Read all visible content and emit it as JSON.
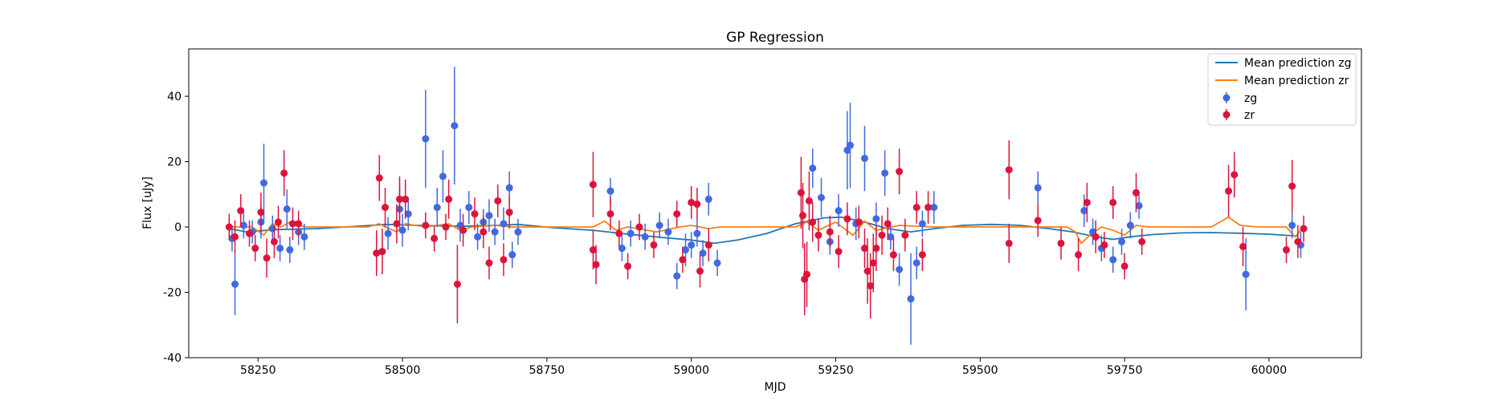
{
  "chart_data": {
    "type": "scatter",
    "title": "GP Regression",
    "xlabel": "MJD",
    "ylabel": "Flux [uJy]",
    "xlim": [
      58130,
      60160
    ],
    "ylim": [
      -40,
      54.5
    ],
    "xticks": [
      58250,
      58500,
      58750,
      59000,
      59250,
      59500,
      59750,
      60000
    ],
    "yticks": [
      -40,
      -20,
      0,
      20,
      40
    ],
    "legend_position": "top-right",
    "colors": {
      "zg": "#4169e1",
      "zr": "#dc143c",
      "mean_zg": "#1f77b4",
      "mean_zr": "#ff7f0e"
    },
    "lines": [
      {
        "name": "Mean prediction zg",
        "points": [
          [
            58200,
            -0.5
          ],
          [
            58230,
            -1.5
          ],
          [
            58280,
            -0.8
          ],
          [
            58350,
            -0.5
          ],
          [
            58430,
            0.3
          ],
          [
            58470,
            0.8
          ],
          [
            58530,
            0.5
          ],
          [
            58600,
            0.2
          ],
          [
            58660,
            0.5
          ],
          [
            58700,
            0.8
          ],
          [
            58760,
            -0.2
          ],
          [
            58830,
            -1.0
          ],
          [
            58880,
            -2.0
          ],
          [
            58950,
            -3.2
          ],
          [
            59000,
            -4.0
          ],
          [
            59040,
            -5.0
          ],
          [
            59080,
            -4.0
          ],
          [
            59130,
            -2.0
          ],
          [
            59180,
            1.0
          ],
          [
            59230,
            2.8
          ],
          [
            59260,
            3.0
          ],
          [
            59300,
            1.5
          ],
          [
            59340,
            -0.5
          ],
          [
            59380,
            -1.5
          ],
          [
            59420,
            -0.5
          ],
          [
            59470,
            0.5
          ],
          [
            59520,
            0.8
          ],
          [
            59570,
            0.5
          ],
          [
            59620,
            -0.5
          ],
          [
            59660,
            -1.5
          ],
          [
            59700,
            -3.0
          ],
          [
            59730,
            -3.8
          ],
          [
            59760,
            -3.0
          ],
          [
            59800,
            -2.3
          ],
          [
            59850,
            -1.8
          ],
          [
            59900,
            -1.7
          ],
          [
            59950,
            -1.9
          ],
          [
            60000,
            -2.2
          ],
          [
            60050,
            -2.8
          ]
        ]
      },
      {
        "name": "Mean prediction zr",
        "points": [
          [
            58200,
            0
          ],
          [
            58240,
            0
          ],
          [
            58260,
            -2.5
          ],
          [
            58275,
            1.0
          ],
          [
            58290,
            0
          ],
          [
            58305,
            1.5
          ],
          [
            58330,
            0
          ],
          [
            58440,
            0
          ],
          [
            58460,
            1.0
          ],
          [
            58470,
            0
          ],
          [
            58490,
            -1.5
          ],
          [
            58505,
            1.0
          ],
          [
            58540,
            0
          ],
          [
            58580,
            1.0
          ],
          [
            58600,
            -1.0
          ],
          [
            58620,
            0
          ],
          [
            58660,
            0.5
          ],
          [
            58690,
            0
          ],
          [
            58830,
            0
          ],
          [
            58850,
            1.8
          ],
          [
            58870,
            -1.0
          ],
          [
            58890,
            0
          ],
          [
            58940,
            -1.5
          ],
          [
            58980,
            0
          ],
          [
            59000,
            0.5
          ],
          [
            59030,
            -0.5
          ],
          [
            59050,
            0
          ],
          [
            59180,
            0
          ],
          [
            59200,
            1.5
          ],
          [
            59220,
            -1.0
          ],
          [
            59250,
            1.5
          ],
          [
            59280,
            -2.5
          ],
          [
            59300,
            1.8
          ],
          [
            59320,
            -1.0
          ],
          [
            59360,
            0.5
          ],
          [
            59420,
            0
          ],
          [
            59540,
            0
          ],
          [
            59650,
            0
          ],
          [
            59665,
            -1.5
          ],
          [
            59675,
            -5.0
          ],
          [
            59690,
            -2.5
          ],
          [
            59710,
            0
          ],
          [
            59730,
            -1.0
          ],
          [
            59750,
            -2.5
          ],
          [
            59770,
            0.5
          ],
          [
            59790,
            0
          ],
          [
            59900,
            0
          ],
          [
            59930,
            3.0
          ],
          [
            59950,
            0.5
          ],
          [
            59980,
            0
          ],
          [
            60030,
            0
          ],
          [
            60045,
            -3.0
          ],
          [
            60055,
            -1.0
          ]
        ]
      }
    ],
    "series": [
      {
        "name": "zg",
        "points": [
          [
            58205,
            -3.5,
            4
          ],
          [
            58210,
            -17.5,
            9.5
          ],
          [
            58225,
            0.5,
            4
          ],
          [
            58240,
            -1.5,
            3.5
          ],
          [
            58255,
            1.5,
            5
          ],
          [
            58260,
            13.5,
            12
          ],
          [
            58275,
            -0.5,
            4
          ],
          [
            58288,
            -6.5,
            4
          ],
          [
            58300,
            5.5,
            6
          ],
          [
            58305,
            -7.0,
            4
          ],
          [
            58320,
            -1.5,
            4
          ],
          [
            58330,
            -3.0,
            4
          ],
          [
            58475,
            -2.0,
            5
          ],
          [
            58495,
            5.5,
            7
          ],
          [
            58500,
            -1.0,
            5
          ],
          [
            58510,
            4.0,
            5
          ],
          [
            58540,
            27.0,
            15
          ],
          [
            58560,
            6.0,
            6
          ],
          [
            58570,
            15.5,
            8
          ],
          [
            58590,
            31.0,
            18
          ],
          [
            58600,
            0.5,
            5
          ],
          [
            58615,
            6.0,
            5
          ],
          [
            58630,
            -3.0,
            4
          ],
          [
            58640,
            1.5,
            4
          ],
          [
            58650,
            3.5,
            5
          ],
          [
            58660,
            -1.5,
            4
          ],
          [
            58675,
            1.0,
            5
          ],
          [
            58685,
            12.0,
            5
          ],
          [
            58690,
            -8.5,
            4
          ],
          [
            58700,
            -1.5,
            4
          ],
          [
            58860,
            11.0,
            4
          ],
          [
            58880,
            -6.5,
            4
          ],
          [
            58895,
            -2.0,
            4
          ],
          [
            58920,
            -3.0,
            4
          ],
          [
            58945,
            0.5,
            4
          ],
          [
            58960,
            -1.5,
            4
          ],
          [
            58975,
            -15.0,
            4
          ],
          [
            58990,
            -7.0,
            5
          ],
          [
            59000,
            -5.5,
            4
          ],
          [
            59010,
            -2.0,
            4
          ],
          [
            59020,
            -8.0,
            4
          ],
          [
            59030,
            8.5,
            5
          ],
          [
            59045,
            -11.0,
            4
          ],
          [
            59210,
            18.0,
            6
          ],
          [
            59225,
            9.0,
            6
          ],
          [
            59240,
            -4.5,
            4
          ],
          [
            59255,
            5.0,
            5
          ],
          [
            59270,
            23.5,
            12
          ],
          [
            59275,
            25.0,
            13
          ],
          [
            59285,
            1.0,
            5
          ],
          [
            59300,
            21.0,
            10
          ],
          [
            59320,
            2.5,
            5
          ],
          [
            59335,
            16.5,
            7
          ],
          [
            59345,
            -3.0,
            4
          ],
          [
            59360,
            -13.0,
            5
          ],
          [
            59380,
            -22.0,
            14
          ],
          [
            59390,
            -11.0,
            5
          ],
          [
            59400,
            1.0,
            4
          ],
          [
            59420,
            6.0,
            5
          ],
          [
            59600,
            12.0,
            5
          ],
          [
            59680,
            5.0,
            5
          ],
          [
            59695,
            -1.5,
            4
          ],
          [
            59710,
            -6.5,
            4
          ],
          [
            59730,
            -10.0,
            4
          ],
          [
            59745,
            -4.5,
            4
          ],
          [
            59760,
            0.5,
            4
          ],
          [
            59775,
            6.5,
            4
          ],
          [
            59960,
            -14.5,
            11
          ],
          [
            60040,
            0.5,
            4
          ],
          [
            60055,
            -5.5,
            4
          ]
        ]
      },
      {
        "name": "zr",
        "points": [
          [
            58200,
            0.0,
            4
          ],
          [
            58210,
            -3.0,
            5
          ],
          [
            58220,
            5.0,
            5
          ],
          [
            58235,
            -2.0,
            4
          ],
          [
            58245,
            -6.5,
            4
          ],
          [
            58255,
            4.5,
            6
          ],
          [
            58265,
            -9.5,
            6
          ],
          [
            58278,
            -4.5,
            5
          ],
          [
            58285,
            1.5,
            5
          ],
          [
            58295,
            16.5,
            7
          ],
          [
            58310,
            1.0,
            5
          ],
          [
            58320,
            1.0,
            4
          ],
          [
            58455,
            -8.0,
            7
          ],
          [
            58460,
            15.0,
            7
          ],
          [
            58465,
            -7.5,
            7
          ],
          [
            58470,
            6.0,
            6
          ],
          [
            58490,
            1.0,
            6
          ],
          [
            58495,
            8.5,
            7
          ],
          [
            58505,
            8.5,
            6
          ],
          [
            58540,
            0.5,
            4
          ],
          [
            58555,
            -3.5,
            4
          ],
          [
            58575,
            0.0,
            4
          ],
          [
            58580,
            8.5,
            6
          ],
          [
            58595,
            -17.5,
            12
          ],
          [
            58605,
            -1.0,
            5
          ],
          [
            58625,
            4.0,
            5
          ],
          [
            58640,
            -1.5,
            5
          ],
          [
            58650,
            -11.0,
            5
          ],
          [
            58665,
            8.0,
            5
          ],
          [
            58675,
            -10.0,
            5
          ],
          [
            58685,
            4.5,
            5
          ],
          [
            58830,
            13.0,
            10
          ],
          [
            58830,
            -7.0,
            6
          ],
          [
            58835,
            -11.5,
            6
          ],
          [
            58860,
            4.0,
            5
          ],
          [
            58875,
            -2.0,
            4
          ],
          [
            58890,
            -12.0,
            4
          ],
          [
            58910,
            0.0,
            4
          ],
          [
            58935,
            -5.5,
            4
          ],
          [
            58975,
            4.0,
            4
          ],
          [
            58985,
            -10.0,
            4
          ],
          [
            59000,
            7.5,
            5
          ],
          [
            59010,
            7.0,
            5
          ],
          [
            59015,
            -13.5,
            5
          ],
          [
            59030,
            -5.5,
            5
          ],
          [
            59190,
            10.5,
            11
          ],
          [
            59193,
            3.5,
            10
          ],
          [
            59196,
            -16.0,
            11
          ],
          [
            59200,
            -14.5,
            10
          ],
          [
            59204,
            8.0,
            9
          ],
          [
            59210,
            1.5,
            6
          ],
          [
            59220,
            -2.5,
            5
          ],
          [
            59240,
            -1.5,
            5
          ],
          [
            59255,
            -7.5,
            5
          ],
          [
            59270,
            2.5,
            5
          ],
          [
            59290,
            1.5,
            5
          ],
          [
            59300,
            -6.5,
            6
          ],
          [
            59305,
            -13.5,
            10
          ],
          [
            59310,
            -18.0,
            10
          ],
          [
            59315,
            -11.0,
            9
          ],
          [
            59320,
            -6.5,
            7
          ],
          [
            59330,
            -2.5,
            6
          ],
          [
            59340,
            1.0,
            5
          ],
          [
            59350,
            -8.5,
            5
          ],
          [
            59360,
            17.0,
            7
          ],
          [
            59370,
            -2.5,
            5
          ],
          [
            59390,
            6.0,
            5
          ],
          [
            59400,
            -8.5,
            5
          ],
          [
            59410,
            6.0,
            5
          ],
          [
            59550,
            17.5,
            9
          ],
          [
            59550,
            -5.0,
            6
          ],
          [
            59600,
            2.0,
            5
          ],
          [
            59640,
            -5.0,
            5
          ],
          [
            59670,
            -8.5,
            5
          ],
          [
            59685,
            7.5,
            6
          ],
          [
            59700,
            -3.0,
            5
          ],
          [
            59715,
            -5.5,
            4
          ],
          [
            59730,
            7.5,
            5
          ],
          [
            59750,
            -12.0,
            4
          ],
          [
            59770,
            10.5,
            6
          ],
          [
            59780,
            -4.5,
            4
          ],
          [
            59930,
            11.0,
            8
          ],
          [
            59940,
            16.0,
            7
          ],
          [
            59955,
            -6.0,
            6
          ],
          [
            60030,
            -7.0,
            4
          ],
          [
            60040,
            12.5,
            8
          ],
          [
            60050,
            -4.5,
            5
          ],
          [
            60060,
            -0.5,
            4
          ]
        ]
      }
    ]
  }
}
